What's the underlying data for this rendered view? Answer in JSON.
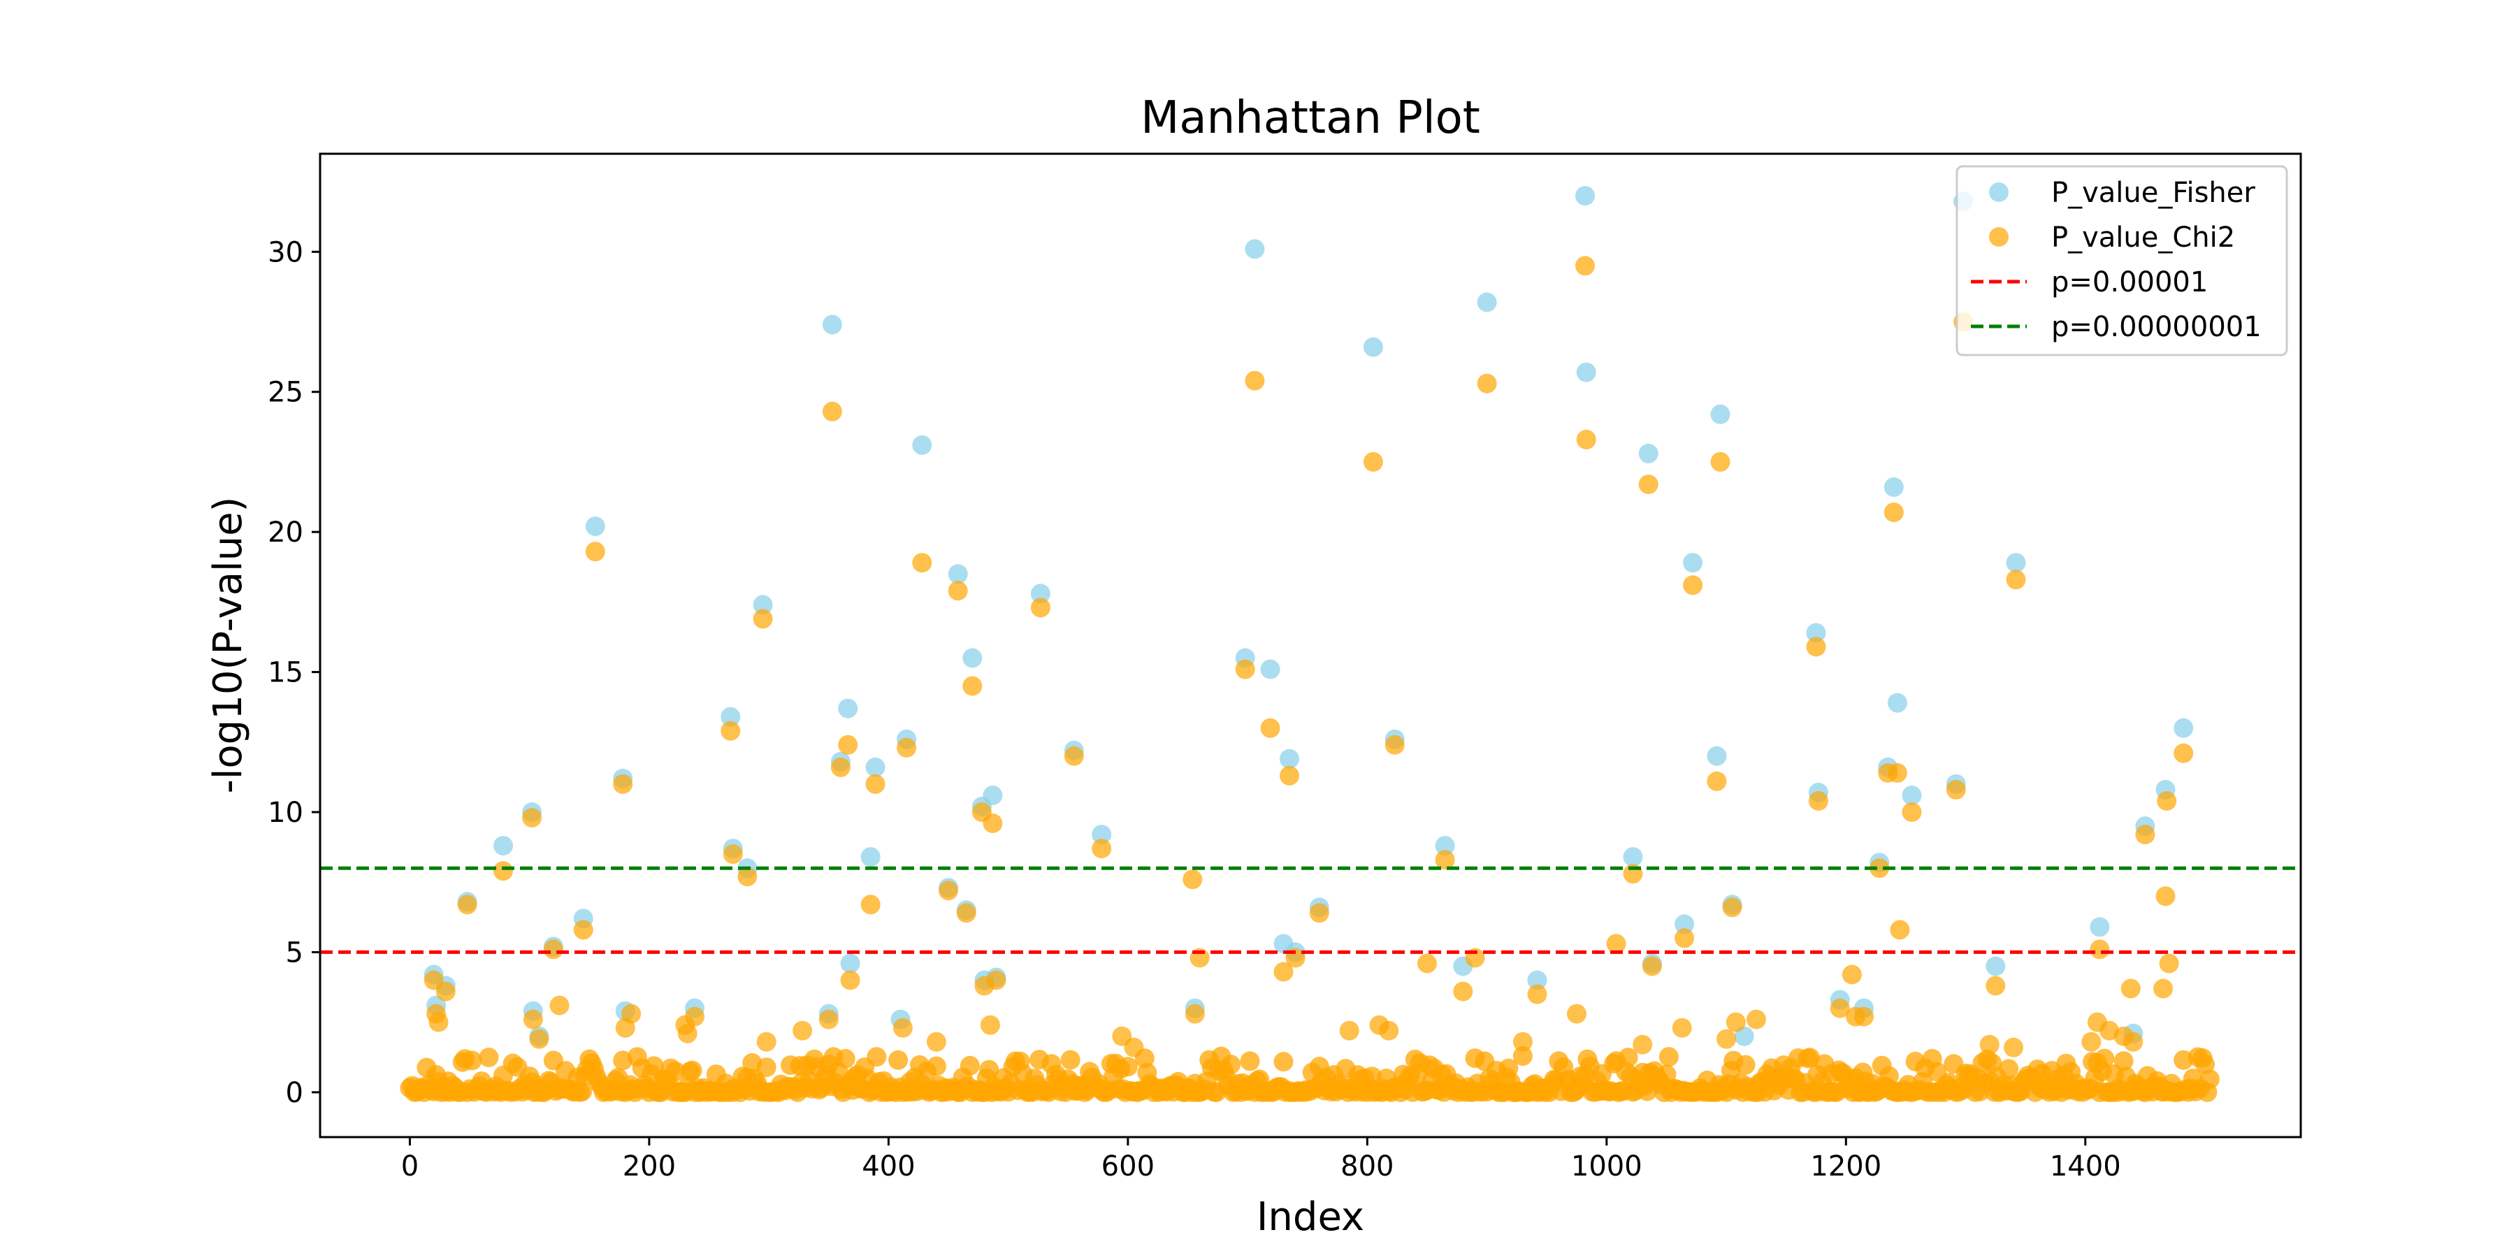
{
  "chart_data": {
    "type": "scatter",
    "title": "Manhattan Plot",
    "xlabel": "Index",
    "ylabel": "-log10(P-value)",
    "xlim": [
      -75,
      1580
    ],
    "ylim": [
      -1.6,
      33.5
    ],
    "xticks": [
      0,
      200,
      400,
      600,
      800,
      1000,
      1200,
      1400
    ],
    "yticks": [
      0,
      5,
      10,
      15,
      20,
      25,
      30
    ],
    "grid": false,
    "legend_position": "top-right",
    "series": [
      {
        "name": "P_value_Fisher",
        "color": "#87CEEB",
        "marker": "circle",
        "points": [
          [
            20,
            4.2
          ],
          [
            22,
            3.1
          ],
          [
            30,
            3.8
          ],
          [
            48,
            6.8
          ],
          [
            78,
            8.8
          ],
          [
            102,
            10.0
          ],
          [
            103,
            2.9
          ],
          [
            108,
            2.0
          ],
          [
            120,
            5.2
          ],
          [
            145,
            6.2
          ],
          [
            155,
            20.2
          ],
          [
            178,
            11.2
          ],
          [
            180,
            2.9
          ],
          [
            238,
            3.0
          ],
          [
            268,
            13.4
          ],
          [
            270,
            8.7
          ],
          [
            282,
            8.0
          ],
          [
            295,
            17.4
          ],
          [
            350,
            2.8
          ],
          [
            353,
            27.4
          ],
          [
            360,
            11.8
          ],
          [
            366,
            13.7
          ],
          [
            368,
            4.6
          ],
          [
            385,
            8.4
          ],
          [
            389,
            11.6
          ],
          [
            410,
            2.6
          ],
          [
            415,
            12.6
          ],
          [
            428,
            23.1
          ],
          [
            450,
            7.3
          ],
          [
            458,
            18.5
          ],
          [
            465,
            6.5
          ],
          [
            470,
            15.5
          ],
          [
            478,
            10.2
          ],
          [
            480,
            4.0
          ],
          [
            487,
            10.6
          ],
          [
            490,
            4.1
          ],
          [
            527,
            17.8
          ],
          [
            555,
            12.2
          ],
          [
            578,
            9.2
          ],
          [
            656,
            3.0
          ],
          [
            698,
            15.5
          ],
          [
            706,
            30.1
          ],
          [
            719,
            15.1
          ],
          [
            730,
            5.3
          ],
          [
            735,
            11.9
          ],
          [
            740,
            5.0
          ],
          [
            760,
            6.6
          ],
          [
            805,
            26.6
          ],
          [
            823,
            12.6
          ],
          [
            865,
            8.8
          ],
          [
            880,
            4.5
          ],
          [
            900,
            28.2
          ],
          [
            942,
            4.0
          ],
          [
            982,
            32.0
          ],
          [
            983,
            25.7
          ],
          [
            1022,
            8.4
          ],
          [
            1035,
            22.8
          ],
          [
            1038,
            4.6
          ],
          [
            1065,
            6.0
          ],
          [
            1072,
            18.9
          ],
          [
            1092,
            12.0
          ],
          [
            1095,
            24.2
          ],
          [
            1105,
            6.7
          ],
          [
            1115,
            2.0
          ],
          [
            1175,
            16.4
          ],
          [
            1177,
            10.7
          ],
          [
            1195,
            3.3
          ],
          [
            1215,
            3.0
          ],
          [
            1228,
            8.2
          ],
          [
            1235,
            11.6
          ],
          [
            1240,
            21.6
          ],
          [
            1243,
            13.9
          ],
          [
            1255,
            10.6
          ],
          [
            1292,
            11.0
          ],
          [
            1298,
            31.8
          ],
          [
            1325,
            4.5
          ],
          [
            1342,
            18.9
          ],
          [
            1412,
            5.9
          ],
          [
            1440,
            2.1
          ],
          [
            1450,
            9.5
          ],
          [
            1467,
            10.8
          ],
          [
            1482,
            13.0
          ]
        ]
      },
      {
        "name": "P_value_Chi2",
        "color": "#FFA500",
        "marker": "circle",
        "points": [
          [
            20,
            4.0
          ],
          [
            22,
            2.8
          ],
          [
            24,
            2.5
          ],
          [
            30,
            3.6
          ],
          [
            48,
            6.7
          ],
          [
            78,
            7.9
          ],
          [
            102,
            9.8
          ],
          [
            103,
            2.6
          ],
          [
            108,
            1.9
          ],
          [
            120,
            5.1
          ],
          [
            125,
            3.1
          ],
          [
            145,
            5.8
          ],
          [
            155,
            19.3
          ],
          [
            178,
            11.0
          ],
          [
            180,
            2.3
          ],
          [
            185,
            2.8
          ],
          [
            230,
            2.4
          ],
          [
            232,
            2.1
          ],
          [
            238,
            2.7
          ],
          [
            268,
            12.9
          ],
          [
            270,
            8.5
          ],
          [
            282,
            7.7
          ],
          [
            295,
            16.9
          ],
          [
            298,
            1.8
          ],
          [
            328,
            2.2
          ],
          [
            350,
            2.6
          ],
          [
            353,
            24.3
          ],
          [
            360,
            11.6
          ],
          [
            366,
            12.4
          ],
          [
            368,
            4.0
          ],
          [
            385,
            6.7
          ],
          [
            389,
            11.0
          ],
          [
            412,
            2.3
          ],
          [
            415,
            12.3
          ],
          [
            428,
            18.9
          ],
          [
            440,
            1.8
          ],
          [
            450,
            7.2
          ],
          [
            458,
            17.9
          ],
          [
            465,
            6.4
          ],
          [
            470,
            14.5
          ],
          [
            478,
            10.0
          ],
          [
            480,
            3.8
          ],
          [
            485,
            2.4
          ],
          [
            487,
            9.6
          ],
          [
            490,
            4.0
          ],
          [
            527,
            17.3
          ],
          [
            555,
            12.0
          ],
          [
            578,
            8.7
          ],
          [
            595,
            2.0
          ],
          [
            605,
            1.6
          ],
          [
            654,
            7.6
          ],
          [
            656,
            2.8
          ],
          [
            660,
            4.8
          ],
          [
            698,
            15.1
          ],
          [
            706,
            25.4
          ],
          [
            719,
            13.0
          ],
          [
            730,
            4.3
          ],
          [
            735,
            11.3
          ],
          [
            740,
            4.8
          ],
          [
            760,
            6.4
          ],
          [
            785,
            2.2
          ],
          [
            805,
            22.5
          ],
          [
            810,
            2.4
          ],
          [
            818,
            2.2
          ],
          [
            823,
            12.4
          ],
          [
            850,
            4.6
          ],
          [
            865,
            8.3
          ],
          [
            880,
            3.6
          ],
          [
            890,
            4.8
          ],
          [
            900,
            25.3
          ],
          [
            930,
            1.8
          ],
          [
            942,
            3.5
          ],
          [
            975,
            2.8
          ],
          [
            982,
            29.5
          ],
          [
            983,
            23.3
          ],
          [
            1008,
            5.3
          ],
          [
            1022,
            7.8
          ],
          [
            1030,
            1.7
          ],
          [
            1035,
            21.7
          ],
          [
            1038,
            4.5
          ],
          [
            1063,
            2.3
          ],
          [
            1065,
            5.5
          ],
          [
            1072,
            18.1
          ],
          [
            1092,
            11.1
          ],
          [
            1095,
            22.5
          ],
          [
            1100,
            1.9
          ],
          [
            1105,
            6.6
          ],
          [
            1108,
            2.5
          ],
          [
            1125,
            2.6
          ],
          [
            1175,
            15.9
          ],
          [
            1177,
            10.4
          ],
          [
            1195,
            3.0
          ],
          [
            1205,
            4.2
          ],
          [
            1208,
            2.7
          ],
          [
            1215,
            2.7
          ],
          [
            1228,
            8.0
          ],
          [
            1235,
            11.4
          ],
          [
            1240,
            20.7
          ],
          [
            1243,
            11.4
          ],
          [
            1245,
            5.8
          ],
          [
            1255,
            10.0
          ],
          [
            1292,
            10.8
          ],
          [
            1298,
            27.5
          ],
          [
            1320,
            1.7
          ],
          [
            1325,
            3.8
          ],
          [
            1340,
            1.6
          ],
          [
            1342,
            18.3
          ],
          [
            1405,
            1.8
          ],
          [
            1410,
            2.5
          ],
          [
            1412,
            5.1
          ],
          [
            1420,
            2.2
          ],
          [
            1432,
            2.0
          ],
          [
            1438,
            3.7
          ],
          [
            1440,
            1.8
          ],
          [
            1450,
            9.2
          ],
          [
            1465,
            3.7
          ],
          [
            1467,
            7.0
          ],
          [
            1468,
            10.4
          ],
          [
            1470,
            4.6
          ],
          [
            1482,
            12.1
          ]
        ]
      },
      {
        "name": "p=0.00001",
        "type": "hline",
        "y": 5,
        "color": "#FF0000",
        "style": "dashed"
      },
      {
        "name": "p=0.00000001",
        "type": "hline",
        "y": 8,
        "color": "#008000",
        "style": "dashed"
      }
    ]
  }
}
